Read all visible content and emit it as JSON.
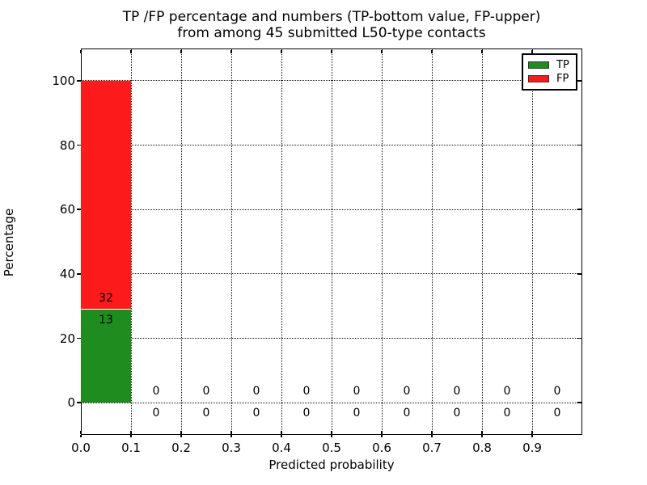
{
  "title": {
    "line1": "TP /FP percentage and numbers (TP-bottom value, FP-upper)",
    "line2": "from among 45 submitted L50-type contacts"
  },
  "legend": {
    "position": "upper-right",
    "items": [
      {
        "label": "TP",
        "color": "#1e8c1e"
      },
      {
        "label": "FP",
        "color": "#fc1a1a"
      }
    ]
  },
  "chart_data": {
    "type": "bar",
    "stacked": true,
    "title": "TP /FP percentage and numbers (TP-bottom value, FP-upper) from among 45 submitted L50-type contacts",
    "xlabel": "Predicted probability",
    "ylabel": "Percentage",
    "xlim": [
      0.0,
      1.0
    ],
    "ylim": [
      -10,
      110
    ],
    "yticks": [
      0,
      20,
      40,
      60,
      80,
      100
    ],
    "xticks": [
      0.0,
      0.1,
      0.2,
      0.3,
      0.4,
      0.5,
      0.6,
      0.7,
      0.8,
      0.9
    ],
    "xtick_labels": [
      "0.0",
      "0.1",
      "0.2",
      "0.3",
      "0.4",
      "0.5",
      "0.6",
      "0.7",
      "0.8",
      "0.9"
    ],
    "grid": true,
    "grid_style": "dotted",
    "bin_width": 0.1,
    "bin_starts": [
      0.0,
      0.1,
      0.2,
      0.3,
      0.4,
      0.5,
      0.6,
      0.7,
      0.8,
      0.9
    ],
    "total_submitted": 45,
    "series": [
      {
        "name": "TP",
        "color": "#1e8c1e",
        "counts": [
          13,
          0,
          0,
          0,
          0,
          0,
          0,
          0,
          0,
          0
        ],
        "percent": [
          28.9,
          0,
          0,
          0,
          0,
          0,
          0,
          0,
          0,
          0
        ]
      },
      {
        "name": "FP",
        "color": "#fc1a1a",
        "counts": [
          32,
          0,
          0,
          0,
          0,
          0,
          0,
          0,
          0,
          0
        ],
        "percent": [
          71.1,
          0,
          0,
          0,
          0,
          0,
          0,
          0,
          0,
          0
        ]
      }
    ],
    "legend_position": "upper right"
  }
}
